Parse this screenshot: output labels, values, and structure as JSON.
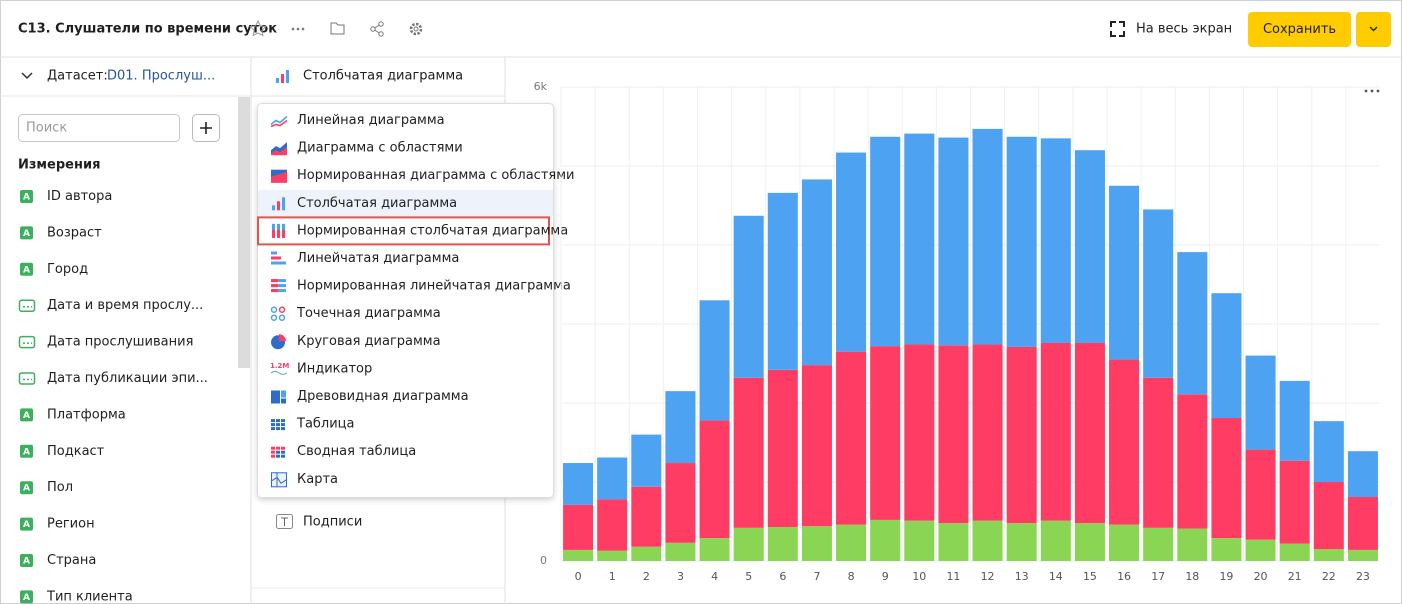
{
  "header": {
    "title": "С13. Слушатели по времени суток",
    "fullscreen": "На весь экран",
    "save": "Сохранить"
  },
  "dataset_panel": {
    "label": "Датасет:",
    "dataset": "D01. Прослуш...",
    "search_placeholder": "Поиск",
    "section": "Измерения",
    "fields": [
      {
        "badge": "A",
        "label": "ID автора"
      },
      {
        "badge": "A",
        "label": "Возраст"
      },
      {
        "badge": "A",
        "label": "Город"
      },
      {
        "label": "Дата и время прослу..."
      },
      {
        "label": "Дата прослушивания"
      },
      {
        "label": "Дата публикации эпи..."
      },
      {
        "badge": "A",
        "label": "Платформа"
      },
      {
        "badge": "A",
        "label": "Подкаст"
      },
      {
        "badge": "A",
        "label": "Пол"
      },
      {
        "badge": "A",
        "label": "Регион"
      },
      {
        "badge": "A",
        "label": "Страна"
      },
      {
        "badge": "A",
        "label": "Тип клиента"
      }
    ]
  },
  "visualization_panel": {
    "current": "Столбчатая диаграмма",
    "menu": [
      {
        "label": "Линейная диаграмма"
      },
      {
        "label": "Диаграмма с областями"
      },
      {
        "label": "Нормированная диаграмма с областями"
      },
      {
        "label": "Столбчатая диаграмма"
      },
      {
        "label": "Нормированная столбчатая диаграмма"
      },
      {
        "label": "Линейчатая диаграмма"
      },
      {
        "label": "Нормированная линейчатая диаграмма"
      },
      {
        "label": "Точечная диаграмма"
      },
      {
        "label": "Круговая диаграмма"
      },
      {
        "label": "Индикатор",
        "icon_text": "1.2M"
      },
      {
        "label": "Древовидная диаграмма"
      },
      {
        "label": "Таблица"
      },
      {
        "label": "Сводная таблица"
      },
      {
        "label": "Карта"
      }
    ],
    "selected": 3,
    "highlighted": 4,
    "section": "Подписи"
  },
  "chart_data": {
    "type": "stacked_bar",
    "categories": [
      "0",
      "1",
      "2",
      "3",
      "4",
      "5",
      "6",
      "7",
      "8",
      "9",
      "10",
      "11",
      "12",
      "13",
      "14",
      "15",
      "16",
      "17",
      "18",
      "19",
      "20",
      "21",
      "22",
      "23"
    ],
    "series": [
      {
        "color": "#8ad554",
        "values": [
          140,
          130,
          180,
          230,
          290,
          420,
          430,
          440,
          460,
          520,
          510,
          480,
          510,
          480,
          510,
          480,
          460,
          420,
          410,
          290,
          270,
          220,
          150,
          140
        ]
      },
      {
        "color": "#ff3d64",
        "values": [
          570,
          650,
          760,
          1010,
          1490,
          1900,
          1990,
          2040,
          2190,
          2200,
          2230,
          2250,
          2230,
          2230,
          2250,
          2280,
          2090,
          1900,
          1700,
          1520,
          1140,
          1050,
          850,
          670
        ]
      },
      {
        "color": "#4da2f1",
        "values": [
          530,
          530,
          660,
          910,
          1520,
          2050,
          2240,
          2350,
          2520,
          2650,
          2670,
          2630,
          2730,
          2660,
          2590,
          2440,
          2200,
          2130,
          1800,
          1580,
          1190,
          1010,
          770,
          580
        ]
      }
    ],
    "ylim": [
      0,
      6000
    ],
    "yticks": [
      0,
      {
        "value": 6000,
        "label": "6k"
      }
    ],
    "ygrid": [
      0,
      1000,
      2000,
      3000,
      4000,
      5000,
      6000
    ]
  }
}
